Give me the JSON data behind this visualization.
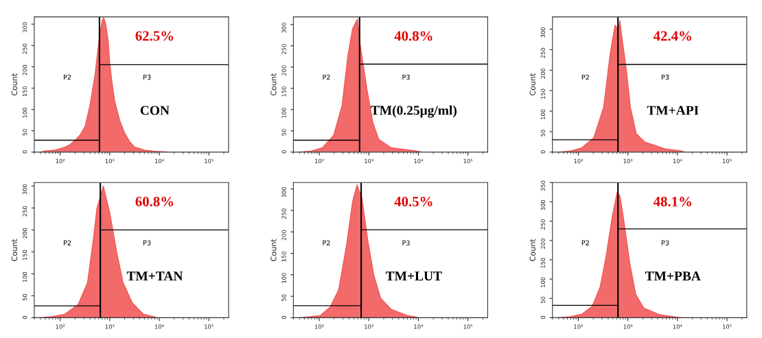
{
  "chart_data": [
    {
      "type": "area",
      "ylabel": "Count",
      "log": "x",
      "xlim": [
        30,
        250000
      ],
      "ylim": [
        0,
        317
      ],
      "yticks": [
        0,
        50,
        100,
        150,
        200,
        250,
        300
      ],
      "xticks": [
        {
          "value": 100,
          "label": "10²"
        },
        {
          "value": 1000,
          "label": "10³"
        },
        {
          "value": 10000,
          "label": "10⁴"
        },
        {
          "value": 100000,
          "label": "10⁵"
        }
      ],
      "annotations": [
        "62.5%",
        "CON",
        "P2",
        "P3"
      ],
      "ref_lines": [
        {
          "axis": "x",
          "value": 620,
          "color": "#000000"
        }
      ],
      "series": [
        {
          "color": "#f05050",
          "x": [
            40,
            50,
            79,
            100,
            126,
            158,
            200,
            251,
            316,
            398,
            501,
            562,
            631,
            708,
            759,
            832,
            933,
            1000,
            1122,
            1259,
            1585,
            1995,
            2512,
            3162,
            5012,
            7943,
            12589,
            15000
          ],
          "values": [
            0,
            3,
            5,
            8,
            12,
            18,
            28,
            40,
            60,
            110,
            180,
            230,
            280,
            310,
            315,
            300,
            260,
            210,
            160,
            120,
            75,
            45,
            25,
            12,
            5,
            2,
            1,
            0
          ]
        },
        {
          "type": "line",
          "color": "#000000",
          "x": [
            30,
            620
          ],
          "values": [
            28,
            28
          ]
        },
        {
          "type": "line",
          "color": "#000000",
          "x": [
            620,
            250000
          ],
          "values": [
            205,
            205
          ]
        }
      ]
    },
    {
      "type": "area",
      "ylabel": "Count",
      "log": "x",
      "xlim": [
        30,
        250000
      ],
      "ylim": [
        0,
        318
      ],
      "yticks": [
        0,
        50,
        100,
        150,
        200,
        250,
        300
      ],
      "xticks": [
        {
          "value": 100,
          "label": "10²"
        },
        {
          "value": 1000,
          "label": "10³"
        },
        {
          "value": 10000,
          "label": "10⁴"
        },
        {
          "value": 100000,
          "label": "10⁵"
        }
      ],
      "annotations": [
        "40.8%",
        "TM(0.25μg/ml)",
        "P2",
        "P3"
      ],
      "ref_lines": [
        {
          "axis": "x",
          "value": 650,
          "color": "#000000"
        }
      ],
      "series": [
        {
          "color": "#f05050",
          "x": [
            40,
            70,
            115,
            195,
            288,
            380,
            468,
            589,
            676,
            912,
            1202,
            1585,
            2884,
            10000,
            12000
          ],
          "values": [
            0,
            3,
            10,
            40,
            110,
            230,
            290,
            313,
            250,
            150,
            70,
            30,
            10,
            2,
            0
          ]
        },
        {
          "type": "line",
          "color": "#000000",
          "x": [
            30,
            650
          ],
          "values": [
            28,
            28
          ]
        },
        {
          "type": "line",
          "color": "#000000",
          "x": [
            650,
            250000
          ],
          "values": [
            207,
            207
          ]
        }
      ]
    },
    {
      "type": "area",
      "ylabel": "Count",
      "log": "x",
      "xlim": [
        30,
        250000
      ],
      "ylim": [
        0,
        330
      ],
      "yticks": [
        0,
        50,
        100,
        150,
        200,
        250,
        300
      ],
      "xticks": [
        {
          "value": 100,
          "label": "10²"
        },
        {
          "value": 1000,
          "label": "10³"
        },
        {
          "value": 10000,
          "label": "10⁴"
        },
        {
          "value": 100000,
          "label": "10⁵"
        }
      ],
      "annotations": [
        "42.4%",
        "TM+API",
        "P2",
        "P3"
      ],
      "ref_lines": [
        {
          "axis": "x",
          "value": 630,
          "color": "#000000"
        }
      ],
      "series": [
        {
          "color": "#f05050",
          "x": [
            40,
            70,
            115,
            204,
            324,
            437,
            550,
            630,
            690,
            759,
            933,
            1122,
            1479,
            2188,
            5623,
            12000,
            14000
          ],
          "values": [
            0,
            3,
            10,
            35,
            110,
            240,
            310,
            300,
            321,
            280,
            200,
            110,
            45,
            25,
            8,
            3,
            0
          ]
        },
        {
          "type": "line",
          "color": "#000000",
          "x": [
            30,
            630
          ],
          "values": [
            30,
            30
          ]
        },
        {
          "type": "line",
          "color": "#000000",
          "x": [
            630,
            250000
          ],
          "values": [
            214,
            214
          ]
        }
      ]
    },
    {
      "type": "area",
      "ylabel": "Count",
      "log": "x",
      "xlim": [
        30,
        250000
      ],
      "ylim": [
        0,
        308
      ],
      "yticks": [
        0,
        50,
        100,
        150,
        200,
        250,
        300
      ],
      "xticks": [
        {
          "value": 100,
          "label": "10²"
        },
        {
          "value": 1000,
          "label": "10³"
        },
        {
          "value": 10000,
          "label": "10⁴"
        },
        {
          "value": 100000,
          "label": "10⁵"
        }
      ],
      "annotations": [
        "60.8%",
        "TM+TAN",
        "P2",
        "P3"
      ],
      "ref_lines": [
        {
          "axis": "x",
          "value": 645,
          "color": "#000000"
        }
      ],
      "series": [
        {
          "color": "#f05050",
          "x": [
            40,
            70,
            123,
            229,
            355,
            479,
            550,
            741,
            1000,
            1380,
            1862,
            2818,
            4786,
            7943,
            9000
          ],
          "values": [
            0,
            3,
            8,
            30,
            80,
            190,
            250,
            300,
            240,
            150,
            80,
            35,
            8,
            2,
            0
          ]
        },
        {
          "type": "line",
          "color": "#000000",
          "x": [
            30,
            645
          ],
          "values": [
            27,
            27
          ]
        },
        {
          "type": "line",
          "color": "#000000",
          "x": [
            645,
            250000
          ],
          "values": [
            200,
            200
          ]
        }
      ]
    },
    {
      "type": "area",
      "ylabel": "Count",
      "log": "x",
      "xlim": [
        30,
        250000
      ],
      "ylim": [
        0,
        315
      ],
      "yticks": [
        0,
        50,
        100,
        150,
        200,
        250,
        300
      ],
      "xticks": [
        {
          "value": 100,
          "label": "10²"
        },
        {
          "value": 1000,
          "label": "10³"
        },
        {
          "value": 10000,
          "label": "10⁴"
        },
        {
          "value": 100000,
          "label": "10⁵"
        }
      ],
      "annotations": [
        "40.5%",
        "TM+LUT",
        "P2",
        "P3"
      ],
      "ref_lines": [
        {
          "axis": "x",
          "value": 700,
          "color": "#000000"
        }
      ],
      "series": [
        {
          "color": "#f05050",
          "x": [
            40,
            60,
            105,
            166,
            245,
            355,
            468,
            575,
            724,
            955,
            1259,
            1738,
            2818,
            6026,
            8710,
            10000
          ],
          "values": [
            0,
            2,
            5,
            25,
            65,
            170,
            270,
            310,
            280,
            180,
            100,
            45,
            20,
            5,
            2,
            0
          ]
        },
        {
          "type": "line",
          "color": "#000000",
          "x": [
            30,
            700
          ],
          "values": [
            28,
            28
          ]
        },
        {
          "type": "line",
          "color": "#000000",
          "x": [
            700,
            250000
          ],
          "values": [
            205,
            205
          ]
        }
      ]
    },
    {
      "type": "area",
      "ylabel": "Count",
      "log": "x",
      "xlim": [
        30,
        250000
      ],
      "ylim": [
        0,
        350
      ],
      "yticks": [
        0,
        50,
        100,
        150,
        200,
        250,
        300,
        350
      ],
      "xticks": [
        {
          "value": 100,
          "label": "10²"
        },
        {
          "value": 1000,
          "label": "10³"
        },
        {
          "value": 10000,
          "label": "10⁴"
        },
        {
          "value": 100000,
          "label": "10⁵"
        }
      ],
      "annotations": [
        "48.1%",
        "TM+PBA",
        "P2",
        "P3"
      ],
      "ref_lines": [
        {
          "axis": "x",
          "value": 630,
          "color": "#000000"
        }
      ],
      "series": [
        {
          "color": "#f05050",
          "x": [
            40,
            70,
            120,
            191,
            275,
            363,
            479,
            603,
            692,
            832,
            1096,
            1445,
            2089,
            4365,
            9120,
            12000
          ],
          "values": [
            0,
            3,
            10,
            30,
            80,
            160,
            260,
            324,
            315,
            250,
            140,
            60,
            25,
            8,
            2,
            0
          ]
        },
        {
          "type": "line",
          "color": "#000000",
          "x": [
            30,
            630
          ],
          "values": [
            32,
            32
          ]
        },
        {
          "type": "line",
          "color": "#000000",
          "x": [
            630,
            250000
          ],
          "values": [
            230,
            230
          ]
        }
      ]
    }
  ]
}
